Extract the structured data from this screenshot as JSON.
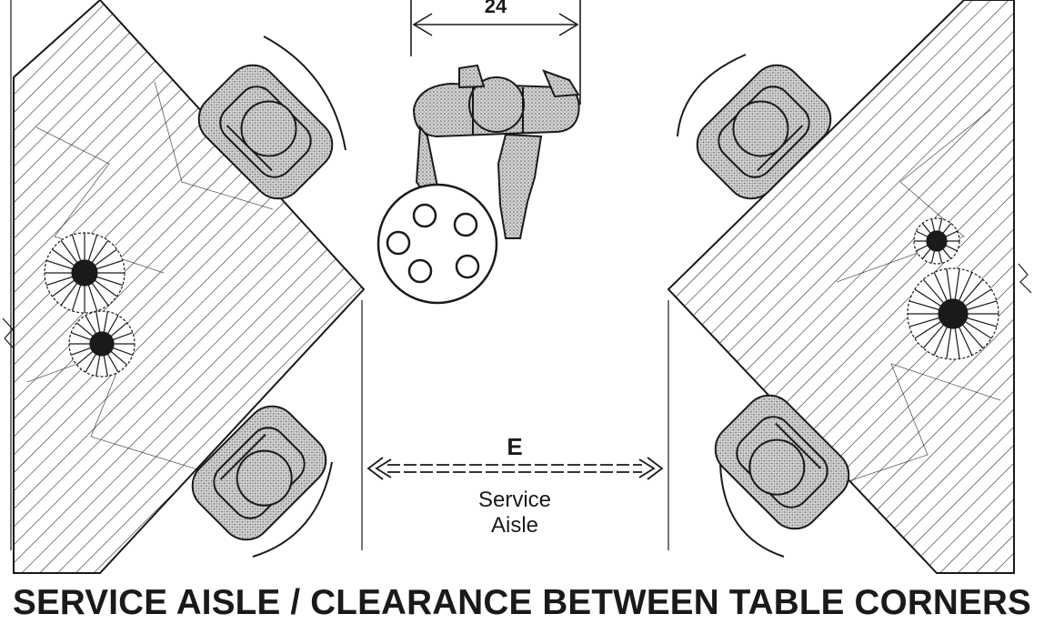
{
  "diagram": {
    "title": "SERVICE AISLE / CLEARANCE BETWEEN TABLE CORNERS",
    "dimension_label": "24",
    "clearance_label": "E",
    "aisle_label_line1": "Service",
    "aisle_label_line2": "Aisle"
  },
  "colors": {
    "ink": "#1a1a1a",
    "fill_stipple": "#bdbdbd",
    "background": "#ffffff"
  },
  "icons": [
    "table-left",
    "table-right",
    "chair-icon",
    "server-figure",
    "serving-tray-icon",
    "place-setting-icon"
  ]
}
